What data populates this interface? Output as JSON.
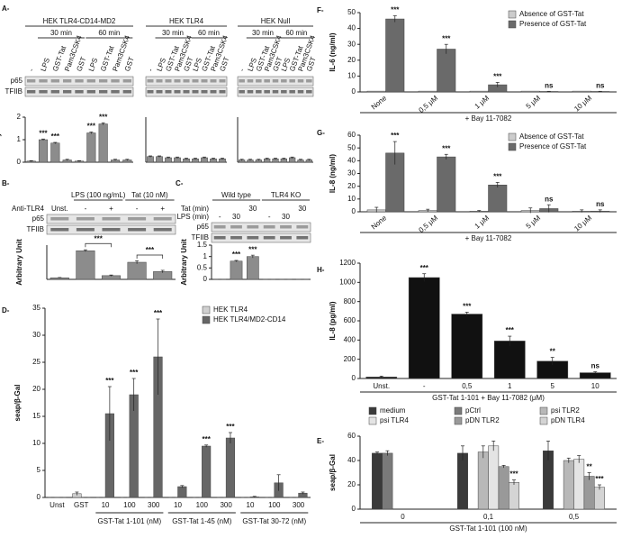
{
  "chart_data": [
    {
      "type": "bar",
      "panel": "A-",
      "ylabel": "Arbitrary Unit",
      "ylim": [
        0,
        2
      ],
      "yticks": [
        0,
        1,
        2
      ],
      "blot": {
        "title": "HEK TLR4-CD14-MD2",
        "groups": [
          "30 min",
          "60 min"
        ],
        "lane_rows": [
          {
            "labels": [
              "-",
              "LPS",
              "GST-Tat",
              "Pam3CSK4",
              "GST",
              "LPS",
              "GST-Tat",
              "Pam3CSK4",
              "GST"
            ]
          }
        ],
        "rows": [
          "p65",
          "TFIIB"
        ]
      },
      "series": [
        {
          "color": "#8c8c8c",
          "values": [
            0.05,
            1.0,
            0.85,
            0.1,
            0.05,
            1.3,
            1.7,
            0.1,
            0.1
          ],
          "errors": [
            0.02,
            0.03,
            0.03,
            0.03,
            0.02,
            0.04,
            0.05,
            0.03,
            0.03
          ],
          "annotations": [
            null,
            "***",
            "***",
            null,
            null,
            "***",
            "***",
            null,
            null
          ]
        }
      ]
    },
    {
      "type": "bar",
      "ylim": [
        0,
        2
      ],
      "blot": {
        "title": "HEK TLR4",
        "groups": [
          "30 min",
          "60 min"
        ],
        "lane_rows": [
          {
            "labels": [
              "-",
              "LPS",
              "GST-Tat",
              "Pam3CSK4",
              "GST",
              "LPS",
              "GST-Tat",
              "Pam3CSK4",
              "GST"
            ]
          }
        ]
      },
      "series": [
        {
          "color": "#8c8c8c",
          "values": [
            0.25,
            0.25,
            0.2,
            0.2,
            0.15,
            0.15,
            0.2,
            0.15,
            0.15
          ],
          "errors": [
            0.03,
            0.03,
            0.03,
            0.03,
            0.03,
            0.03,
            0.03,
            0.03,
            0.03
          ]
        }
      ]
    },
    {
      "type": "bar",
      "ylim": [
        0,
        2
      ],
      "blot": {
        "title": "HEK Null",
        "groups": [
          "30 min",
          "60 min"
        ],
        "lane_rows": [
          {
            "labels": [
              "-",
              "LPS",
              "GST-Tat",
              "Pam3CSK4",
              "GST",
              "LPS",
              "GST-Tat",
              "Pam3CSK4",
              "GST"
            ]
          }
        ]
      },
      "series": [
        {
          "color": "#8c8c8c",
          "values": [
            0.1,
            0.1,
            0.1,
            0.15,
            0.15,
            0.15,
            0.2,
            0.1,
            0.1
          ],
          "errors": [
            0.03,
            0.03,
            0.03,
            0.03,
            0.03,
            0.03,
            0.03,
            0.03,
            0.03
          ]
        }
      ]
    },
    {
      "type": "bar",
      "panel": "B-",
      "ylabel": "Arbitrary Unit",
      "ylim": [
        0,
        1.1
      ],
      "annotation_style": "bracket",
      "blot": {
        "groups": [
          "LPS (100 ng/mL)",
          "Tat (10 nM)"
        ],
        "lane_rows": [
          {
            "name": "Anti-TLR4",
            "labels": [
              "Unst.",
              "-",
              "+",
              "-",
              "+"
            ]
          }
        ],
        "rows": [
          "p65",
          "TFIIB"
        ]
      },
      "series": [
        {
          "color": "#8c8c8c",
          "values": [
            0.05,
            0.92,
            0.12,
            0.55,
            0.25
          ],
          "errors": [
            0.01,
            0.03,
            0.02,
            0.05,
            0.04
          ],
          "annotations": [
            null,
            null,
            "***",
            null,
            "***"
          ]
        }
      ]
    },
    {
      "type": "bar",
      "panel": "C-",
      "ylabel": "Arbitrary Unit",
      "ylim": [
        0,
        1.5
      ],
      "yticks": [
        0,
        0.5,
        1,
        1.5
      ],
      "blot": {
        "groups": [
          "Wild type",
          "TLR4 KO"
        ],
        "lane_rows": [
          {
            "name": "Tat (min)",
            "labels": [
              null,
              null,
              "30",
              null,
              null,
              "30"
            ]
          },
          {
            "name": "LPS (min)",
            "labels": [
              "-",
              "30",
              null,
              "-",
              "30",
              null
            ]
          }
        ],
        "rows": [
          "p65",
          "TFIIB"
        ]
      },
      "series": [
        {
          "color": "#8c8c8c",
          "values": [
            0,
            0.8,
            1.0,
            0,
            0,
            0
          ],
          "errors": [
            0,
            0.03,
            0.06,
            0,
            0,
            0
          ],
          "annotations": [
            null,
            "***",
            "***",
            null,
            null,
            null
          ]
        }
      ]
    },
    {
      "type": "bar",
      "panel": "D-",
      "ylabel": "seap/β-Gal",
      "ylim": [
        0,
        35
      ],
      "yticks": [
        0,
        5,
        10,
        15,
        20,
        25,
        30,
        35
      ],
      "legend": "upper right",
      "categories": [
        "Unst",
        "GST",
        "10",
        "100",
        "300",
        "10",
        "100",
        "300",
        "10",
        "100",
        "300"
      ],
      "groups": [
        "GST-Tat 1-101 (nM)",
        "GST-Tat 1-45 (nM)",
        "GST-Tat 30-72 (nM)"
      ],
      "series": [
        {
          "name": "HEK TLR4",
          "color": "#d0d0d0",
          "values": [
            0,
            0.7,
            0,
            0,
            0,
            0,
            0,
            0,
            0,
            0,
            0
          ],
          "errors": [
            0,
            0.3,
            0,
            0,
            0,
            0,
            0,
            0,
            0,
            0,
            0
          ]
        },
        {
          "name": "HEK TLR4/MD2-CD14",
          "color": "#666666",
          "values": [
            0,
            0,
            15.5,
            19,
            26,
            2,
            9.5,
            11,
            0.1,
            2.7,
            0.8
          ],
          "errors": [
            0,
            0,
            5,
            3,
            7,
            0.2,
            0.2,
            1,
            0.1,
            1.5,
            0.2
          ],
          "annotations": [
            null,
            null,
            "***",
            "***",
            "***",
            null,
            "***",
            "***",
            null,
            null,
            null
          ]
        }
      ]
    },
    {
      "type": "bar",
      "panel": "F-",
      "ylabel": "IL-6 (ng/ml)",
      "xlabel": "+ Bay 11-7082",
      "ylim": [
        0,
        50
      ],
      "yticks": [
        0,
        10,
        20,
        30,
        40,
        50
      ],
      "legend": "upper right",
      "categories": [
        "None",
        "0,5 μM",
        "1 μM",
        "5 μM",
        "10 μM"
      ],
      "series": [
        {
          "name": "Absence of GST-Tat",
          "color": "#cccccc",
          "values": [
            0.5,
            0.5,
            0.5,
            0.5,
            0.5
          ]
        },
        {
          "name": "Presence of GST-Tat",
          "color": "#6a6a6a",
          "values": [
            46,
            27,
            4.5,
            0.3,
            0.3
          ],
          "errors": [
            2,
            3,
            1.5,
            0.1,
            0.1
          ],
          "annotations": [
            "***",
            "***",
            "***",
            "ns",
            "ns"
          ]
        }
      ]
    },
    {
      "type": "bar",
      "panel": "G-",
      "ylabel": "IL-8 (ng/ml)",
      "xlabel": "+ Bay 11-7082",
      "ylim": [
        0,
        60
      ],
      "yticks": [
        0,
        10,
        20,
        30,
        40,
        50,
        60
      ],
      "legend": "upper right",
      "categories": [
        "None",
        "0,5 μM",
        "1 μM",
        "5 μM",
        "10 μM"
      ],
      "series": [
        {
          "name": "Absence of GST-Tat",
          "color": "#cccccc",
          "values": [
            1.5,
            1,
            0.5,
            1,
            0.5
          ],
          "errors": [
            2,
            1,
            0.5,
            2,
            1
          ]
        },
        {
          "name": "Presence of GST-Tat",
          "color": "#6a6a6a",
          "values": [
            46,
            43,
            21,
            2.5,
            0.5
          ],
          "errors": [
            9,
            2,
            2,
            3,
            1
          ],
          "annotations": [
            "***",
            "***",
            "***",
            "ns",
            "ns"
          ]
        }
      ]
    },
    {
      "type": "bar",
      "panel": "H-",
      "ylabel": "IL-8 (pg/ml)",
      "xlabel": "GST-Tat 1-101 + Bay 11-7082 (μM)",
      "ylim": [
        0,
        1200
      ],
      "yticks": [
        0,
        200,
        400,
        600,
        800,
        1000,
        1200
      ],
      "categories": [
        "Unst.",
        "-",
        "0,5",
        "1",
        "5",
        "10"
      ],
      "series": [
        {
          "color": "#111111",
          "values": [
            15,
            1050,
            670,
            390,
            180,
            60
          ],
          "errors": [
            10,
            40,
            20,
            50,
            40,
            10
          ],
          "annotations": [
            null,
            "***",
            "***",
            "***",
            "**",
            "ns"
          ]
        }
      ]
    },
    {
      "type": "bar",
      "panel": "E-",
      "ylabel": "seap/β-Gal",
      "xlabel": "GST-Tat 1-101 (100 nM)",
      "ylim": [
        0,
        60
      ],
      "yticks": [
        0,
        20,
        40,
        60
      ],
      "legend": "top",
      "categories": [
        "0",
        "0,1",
        "0,5"
      ],
      "series": [
        {
          "name": "medium",
          "color": "#3a3a3a",
          "values": [
            46,
            46,
            48
          ],
          "errors": [
            1,
            6,
            8
          ]
        },
        {
          "name": "pCtrl",
          "color": "#7a7a7a",
          "values": [
            46,
            null,
            null
          ],
          "errors": [
            2,
            null,
            null
          ]
        },
        {
          "name": "psi TLR2",
          "color": "#b8b8b8",
          "values": [
            null,
            47,
            40
          ],
          "errors": [
            null,
            5,
            2
          ]
        },
        {
          "name": "psi TLR4",
          "color": "#e4e4e4",
          "values": [
            null,
            52,
            41
          ],
          "errors": [
            null,
            4,
            3
          ]
        },
        {
          "name": "pDN TLR2",
          "color": "#999999",
          "values": [
            null,
            35,
            27
          ],
          "errors": [
            null,
            1,
            3
          ],
          "annotations": [
            null,
            null,
            "**"
          ]
        },
        {
          "name": "pDN TLR4",
          "color": "#d4d4d4",
          "values": [
            null,
            22,
            18
          ],
          "errors": [
            null,
            2,
            2
          ],
          "annotations": [
            null,
            "***",
            "***"
          ]
        }
      ]
    }
  ]
}
